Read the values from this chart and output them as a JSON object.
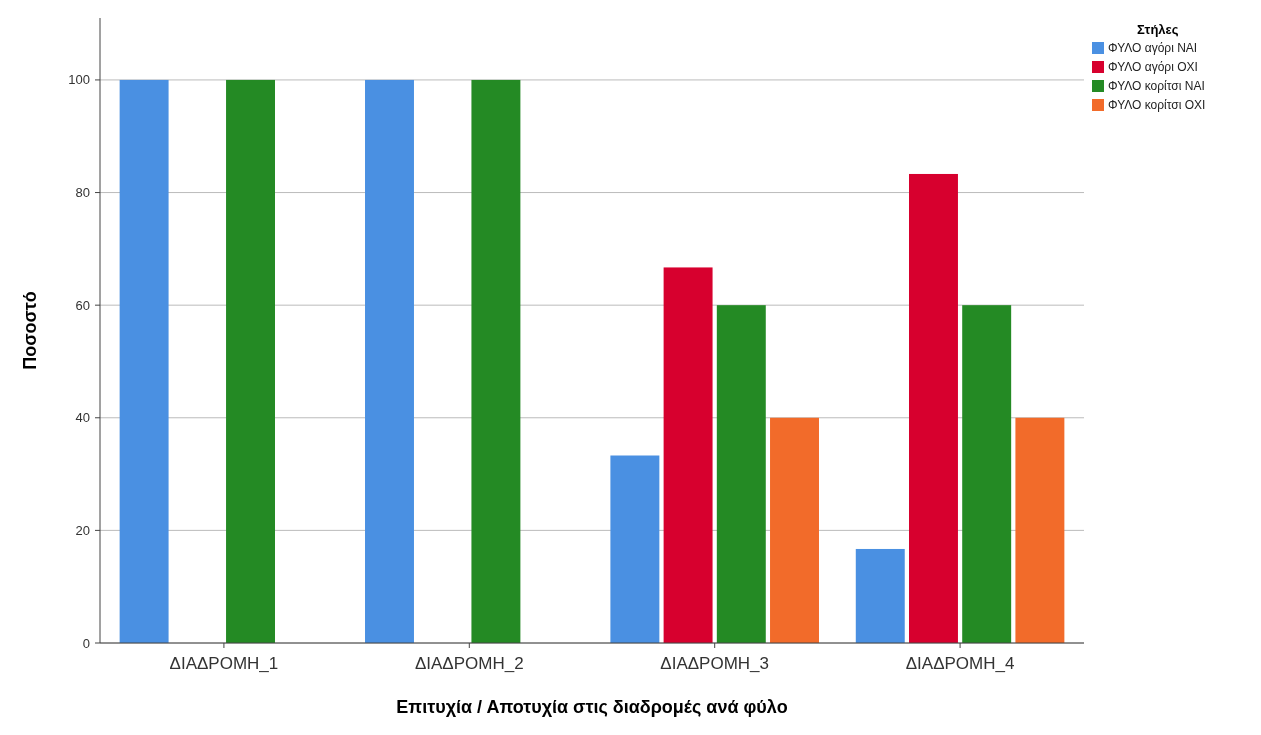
{
  "chart_data": {
    "type": "bar",
    "xlabel": "Επιτυχία / Αποτυχία στις διαδρομές ανά φύλο",
    "ylabel": "Ποσοστό",
    "legend_title": "Στήλες",
    "categories": [
      "ΔΙΑΔΡΟΜΗ_1",
      "ΔΙΑΔΡΟΜΗ_2",
      "ΔΙΑΔΡΟΜΗ_3",
      "ΔΙΑΔΡΟΜΗ_4"
    ],
    "series": [
      {
        "name": "ΦΥΛΟ αγόρι ΝΑΙ",
        "color": "#4a90e2",
        "values": [
          100,
          100,
          33.3,
          16.7
        ]
      },
      {
        "name": "ΦΥΛΟ αγόρι ΟΧΙ",
        "color": "#d7002e",
        "values": [
          0,
          0,
          66.7,
          83.3
        ]
      },
      {
        "name": "ΦΥΛΟ κορίτσι ΝΑΙ",
        "color": "#248a24",
        "values": [
          100,
          100,
          60,
          60
        ]
      },
      {
        "name": "ΦΥΛΟ κορίτσι ΟΧΙ",
        "color": "#f26b2a",
        "values": [
          0,
          0,
          40,
          40
        ]
      }
    ],
    "ylim": [
      0,
      111
    ],
    "yticks": [
      0,
      20,
      40,
      60,
      80,
      100
    ],
    "grid": "y",
    "legend": "top right"
  }
}
